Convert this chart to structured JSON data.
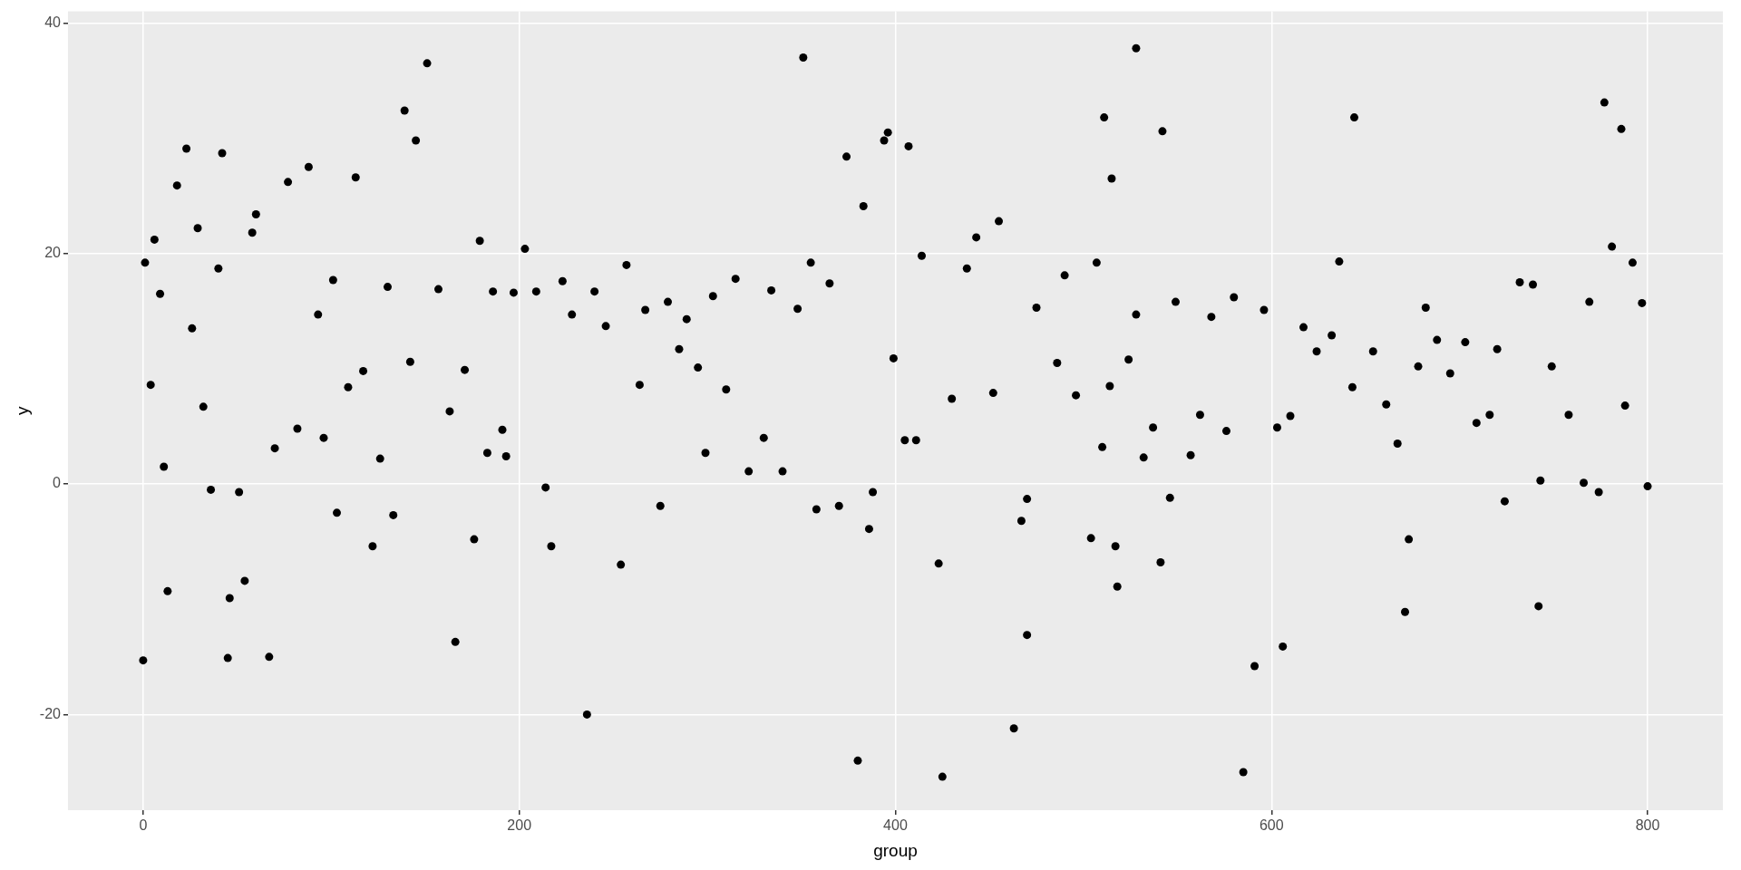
{
  "chart_data": {
    "type": "scatter",
    "xlabel": "group",
    "ylabel": "y",
    "xlim": [
      -40,
      840
    ],
    "ylim": [
      -28.3,
      41
    ],
    "xticks": [
      0,
      200,
      400,
      600,
      800
    ],
    "yticks": [
      -20,
      0,
      20,
      40
    ],
    "grid": true,
    "legend": false,
    "marker": "circle",
    "series": [
      {
        "color": "#000000",
        "x": [
          0,
          1,
          4,
          6,
          9,
          11,
          13,
          18,
          23,
          26,
          29,
          32,
          36,
          40,
          42,
          45,
          46,
          51,
          54,
          58,
          60,
          67,
          70,
          77,
          82,
          88,
          93,
          96,
          101,
          103,
          109,
          113,
          117,
          122,
          126,
          130,
          133,
          139,
          142,
          145,
          151,
          157,
          163,
          166,
          171,
          176,
          179,
          183,
          186,
          191,
          193,
          197,
          203,
          209,
          214,
          217,
          223,
          228,
          236,
          240,
          246,
          254,
          257,
          264,
          267,
          275,
          279,
          285,
          289,
          295,
          299,
          303,
          310,
          315,
          322,
          330,
          334,
          340,
          348,
          351,
          355,
          358,
          365,
          370,
          374,
          380,
          383,
          386,
          388,
          394,
          396,
          399,
          405,
          407,
          411,
          414,
          423,
          425,
          430,
          438,
          443,
          452,
          455,
          463,
          467,
          470,
          470,
          475,
          486,
          490,
          496,
          504,
          507,
          510,
          511,
          514,
          515,
          517,
          518,
          524,
          528,
          528,
          532,
          537,
          541,
          542,
          546,
          549,
          557,
          562,
          568,
          576,
          580,
          585,
          591,
          596,
          603,
          606,
          610,
          617,
          624,
          632,
          636,
          643,
          644,
          654,
          661,
          667,
          671,
          673,
          678,
          682,
          688,
          695,
          703,
          709,
          716,
          720,
          724,
          732,
          739,
          742,
          743,
          749,
          758,
          766,
          769,
          774,
          777,
          781,
          786,
          788,
          792,
          797,
          800
        ],
        "values": [
          -15.3,
          19.2,
          8.6,
          21.2,
          16.5,
          1.5,
          -9.3,
          25.9,
          29.1,
          13.5,
          22.2,
          6.7,
          -0.5,
          18.7,
          28.7,
          -15.1,
          -9.9,
          -0.7,
          -8.4,
          21.8,
          23.4,
          -15.0,
          3.1,
          26.2,
          4.8,
          27.5,
          14.7,
          4.0,
          17.7,
          -2.5,
          8.4,
          26.6,
          9.8,
          -5.4,
          2.2,
          17.1,
          -2.7,
          32.4,
          10.6,
          29.8,
          36.5,
          16.9,
          6.3,
          -13.7,
          9.9,
          -4.8,
          21.1,
          2.7,
          16.7,
          4.7,
          2.4,
          16.6,
          20.4,
          16.7,
          -0.3,
          -5.4,
          17.6,
          14.7,
          -20.0,
          16.7,
          13.7,
          -7.0,
          19.0,
          8.6,
          15.1,
          -1.9,
          15.8,
          11.7,
          14.3,
          10.1,
          2.7,
          16.3,
          8.2,
          17.8,
          1.1,
          4.0,
          16.8,
          1.1,
          15.2,
          37.0,
          19.2,
          -2.2,
          17.4,
          -1.9,
          28.4,
          -24.0,
          24.1,
          -3.9,
          -0.7,
          29.8,
          30.5,
          10.9,
          3.8,
          29.3,
          3.8,
          19.8,
          -6.9,
          -25.4,
          7.4,
          18.7,
          21.4,
          7.9,
          22.8,
          -21.2,
          -3.2,
          -1.3,
          -13.1,
          15.3,
          10.5,
          18.1,
          7.7,
          -4.7,
          19.2,
          3.2,
          31.8,
          8.5,
          26.5,
          -5.4,
          -8.9,
          10.8,
          14.7,
          37.8,
          2.3,
          4.9,
          -6.8,
          30.6,
          -1.2,
          15.8,
          2.5,
          6.0,
          14.5,
          4.6,
          16.2,
          -25.0,
          -15.8,
          15.1,
          4.9,
          -14.1,
          5.9,
          13.6,
          11.5,
          12.9,
          19.3,
          8.4,
          31.8,
          11.5,
          6.9,
          3.5,
          -11.1,
          -4.8,
          10.2,
          15.3,
          12.5,
          9.6,
          12.3,
          5.3,
          6.0,
          11.7,
          -1.5,
          17.5,
          17.3,
          -10.6,
          0.3,
          10.2,
          6.0,
          0.1,
          15.8,
          -0.7,
          33.1,
          20.6,
          30.8,
          6.8,
          19.2,
          15.7,
          -0.2
        ]
      }
    ]
  }
}
